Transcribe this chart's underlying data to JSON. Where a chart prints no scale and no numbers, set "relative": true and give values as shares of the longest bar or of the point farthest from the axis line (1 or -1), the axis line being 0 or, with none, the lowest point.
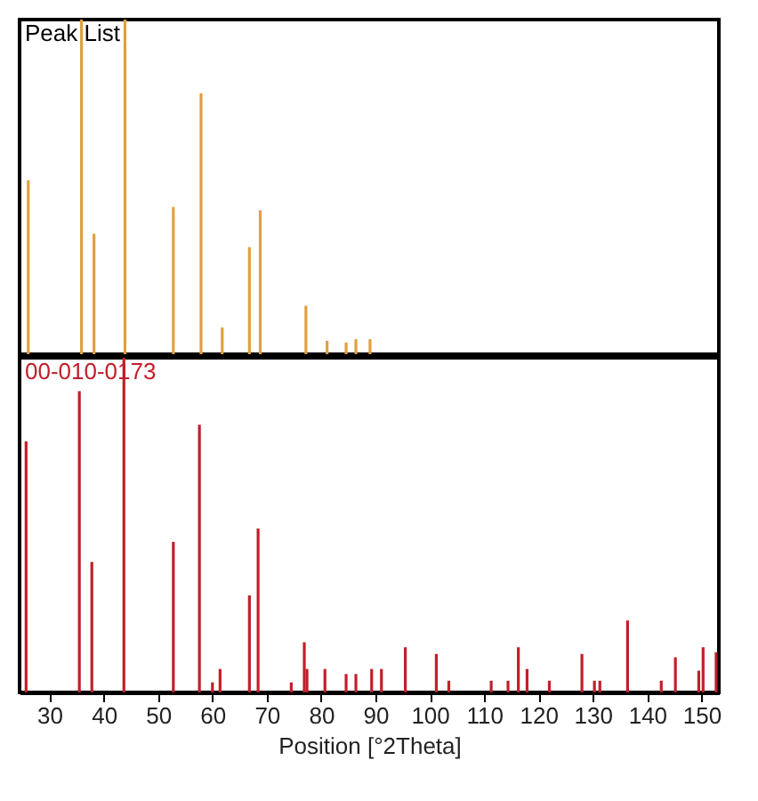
{
  "chart_data": [
    {
      "type": "bar",
      "title": "Peak List",
      "relative": true,
      "tick_labels": false,
      "grid": false,
      "xlim": [
        24.5,
        153.2
      ],
      "x": [
        26.1,
        35.9,
        38.2,
        43.9,
        52.8,
        57.9,
        61.8,
        66.8,
        68.8,
        77.2,
        81.1,
        84.6,
        86.4,
        89.0
      ],
      "series": [
        {
          "color": "#e0a040",
          "values": [
            0.52,
            1,
            0.36,
            1,
            0.44,
            0.78,
            0.08,
            0.32,
            0.43,
            0.145,
            0.04,
            0.035,
            0.045,
            0.045
          ]
        }
      ]
    },
    {
      "type": "bar",
      "title": "00-010-0173",
      "relative": true,
      "tick_labels": "x",
      "grid": false,
      "xlabel": "Position [°2Theta]",
      "xlim": [
        24.5,
        153.2
      ],
      "xticks": [
        30,
        40,
        50,
        60,
        70,
        80,
        90,
        100,
        110,
        120,
        130,
        140,
        150
      ],
      "x": [
        25.7,
        35.5,
        37.8,
        43.7,
        52.8,
        57.6,
        60.0,
        61.4,
        66.8,
        68.4,
        74.5,
        76.9,
        77.4,
        80.7,
        84.6,
        86.4,
        89.3,
        91.1,
        95.5,
        101.2,
        103.5,
        111.3,
        114.4,
        116.3,
        117.9,
        122.0,
        128.0,
        130.3,
        131.3,
        136.4,
        142.6,
        145.2,
        149.5,
        150.3,
        152.7
      ],
      "series": [
        {
          "color": "#c0202a",
          "values": [
            0.75,
            0.9,
            0.39,
            1,
            0.45,
            0.8,
            0.03,
            0.07,
            0.29,
            0.49,
            0.03,
            0.15,
            0.07,
            0.07,
            0.055,
            0.055,
            0.07,
            0.07,
            0.135,
            0.115,
            0.035,
            0.035,
            0.035,
            0.135,
            0.07,
            0.035,
            0.115,
            0.035,
            0.035,
            0.215,
            0.035,
            0.105,
            0.065,
            0.135,
            0.12
          ]
        }
      ]
    }
  ]
}
